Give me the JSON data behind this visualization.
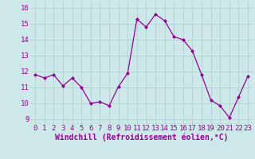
{
  "x": [
    0,
    1,
    2,
    3,
    4,
    5,
    6,
    7,
    8,
    9,
    10,
    11,
    12,
    13,
    14,
    15,
    16,
    17,
    18,
    19,
    20,
    21,
    22,
    23
  ],
  "y": [
    11.8,
    11.6,
    11.8,
    11.1,
    11.6,
    11.0,
    10.0,
    10.1,
    9.85,
    11.05,
    11.9,
    15.3,
    14.8,
    15.6,
    15.2,
    14.2,
    14.0,
    13.3,
    11.8,
    10.2,
    9.85,
    9.1,
    10.4,
    11.7
  ],
  "line_color": "#990099",
  "marker": "D",
  "marker_size": 2,
  "bg_color": "#cce8e8",
  "grid_color": "#aacccc",
  "xlabel": "Windchill (Refroidissement éolien,°C)",
  "xlabel_color": "#990099",
  "xlabel_fontsize": 7,
  "tick_color": "#990099",
  "tick_fontsize": 6.5,
  "yticks": [
    9,
    10,
    11,
    12,
    13,
    14,
    15,
    16
  ],
  "xticks": [
    0,
    1,
    2,
    3,
    4,
    5,
    6,
    7,
    8,
    9,
    10,
    11,
    12,
    13,
    14,
    15,
    16,
    17,
    18,
    19,
    20,
    21,
    22,
    23
  ],
  "ylim": [
    8.7,
    16.4
  ],
  "xlim": [
    -0.5,
    23.5
  ]
}
